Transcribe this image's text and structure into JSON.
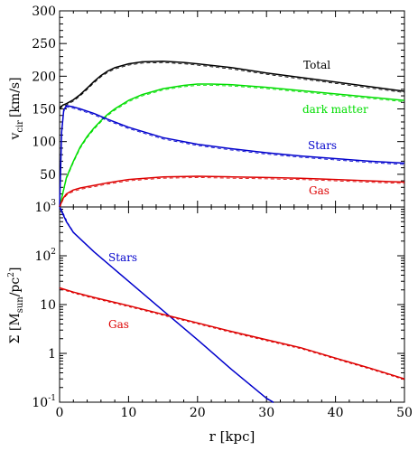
{
  "chart_data": [
    {
      "type": "line",
      "panel": "top",
      "ylabel_main": "v",
      "ylabel_sub": "cir",
      "ylabel_unit": "[km/s]",
      "xlim": [
        0,
        50
      ],
      "ylim": [
        0,
        300
      ],
      "yticks": [
        50,
        100,
        150,
        200,
        250,
        300
      ],
      "xticks": [
        0,
        10,
        20,
        30,
        40,
        50
      ],
      "series": [
        {
          "name": "Total",
          "color": "#000000",
          "x": [
            0,
            0.5,
            1,
            2,
            3,
            4,
            5,
            6,
            7,
            8,
            10,
            12,
            15,
            18,
            20,
            25,
            30,
            35,
            40,
            45,
            50
          ],
          "y": [
            152,
            156,
            158,
            164,
            172,
            182,
            192,
            201,
            208,
            213,
            219,
            222,
            223,
            221,
            219,
            213,
            205,
            198,
            191,
            184,
            177
          ]
        },
        {
          "name": "dark matter",
          "color": "#00dd00",
          "x": [
            0,
            1,
            2,
            3,
            4,
            5,
            6,
            7,
            8,
            10,
            12,
            15,
            18,
            20,
            22,
            25,
            30,
            35,
            40,
            45,
            50
          ],
          "y": [
            0,
            45,
            70,
            92,
            108,
            121,
            132,
            142,
            150,
            163,
            172,
            181,
            186,
            188,
            188,
            187,
            183,
            178,
            173,
            168,
            163
          ]
        },
        {
          "name": "Stars",
          "color": "#0000cc",
          "x": [
            0,
            0.3,
            0.6,
            1,
            2,
            3,
            5,
            7,
            10,
            15,
            20,
            25,
            30,
            35,
            40,
            45,
            50
          ],
          "y": [
            0,
            115,
            148,
            155,
            153,
            150,
            143,
            134,
            122,
            106,
            96,
            89,
            83,
            78,
            74,
            70,
            67
          ]
        },
        {
          "name": "Gas",
          "color": "#dd0000",
          "x": [
            0,
            0.5,
            1,
            2,
            3,
            5,
            7,
            10,
            15,
            20,
            25,
            30,
            35,
            40,
            45,
            50
          ],
          "y": [
            0,
            13,
            20,
            26,
            29,
            33,
            37,
            42,
            46,
            47,
            46,
            45,
            44,
            42,
            40,
            38
          ]
        }
      ]
    },
    {
      "type": "line",
      "panel": "bottom",
      "ylabel_main": "Σ [M",
      "ylabel_sub": "sun",
      "ylabel_unit": "/pc",
      "ylabel_sup": "2",
      "ylabel_close": "]",
      "xlabel": "r [kpc]",
      "xlim": [
        0,
        50
      ],
      "ylim": [
        0.1,
        1000
      ],
      "yscale": "log",
      "xticks": [
        0,
        10,
        20,
        30,
        40,
        50
      ],
      "yticks": [
        {
          "value": 1000,
          "base": "10",
          "exp": "3"
        },
        {
          "value": 100,
          "base": "10",
          "exp": "2"
        },
        {
          "value": 10,
          "base": "10",
          "exp": ""
        },
        {
          "value": 1,
          "base": "1",
          "exp": ""
        },
        {
          "value": 0.1,
          "base": "10",
          "exp": "-1"
        }
      ],
      "series": [
        {
          "name": "Stars",
          "color": "#0000cc",
          "x": [
            0,
            1,
            2,
            5,
            10,
            15,
            20,
            25,
            30,
            31
          ],
          "y": [
            1000,
            500,
            300,
            120,
            30,
            7.5,
            1.9,
            0.46,
            0.12,
            0.1
          ]
        },
        {
          "name": "Gas",
          "color": "#dd0000",
          "x": [
            0,
            2,
            5,
            10,
            15,
            20,
            25,
            30,
            35,
            40,
            45,
            50
          ],
          "y": [
            22,
            18,
            14,
            9.5,
            6.3,
            4.2,
            2.8,
            1.9,
            1.3,
            0.8,
            0.5,
            0.3
          ]
        }
      ]
    }
  ]
}
